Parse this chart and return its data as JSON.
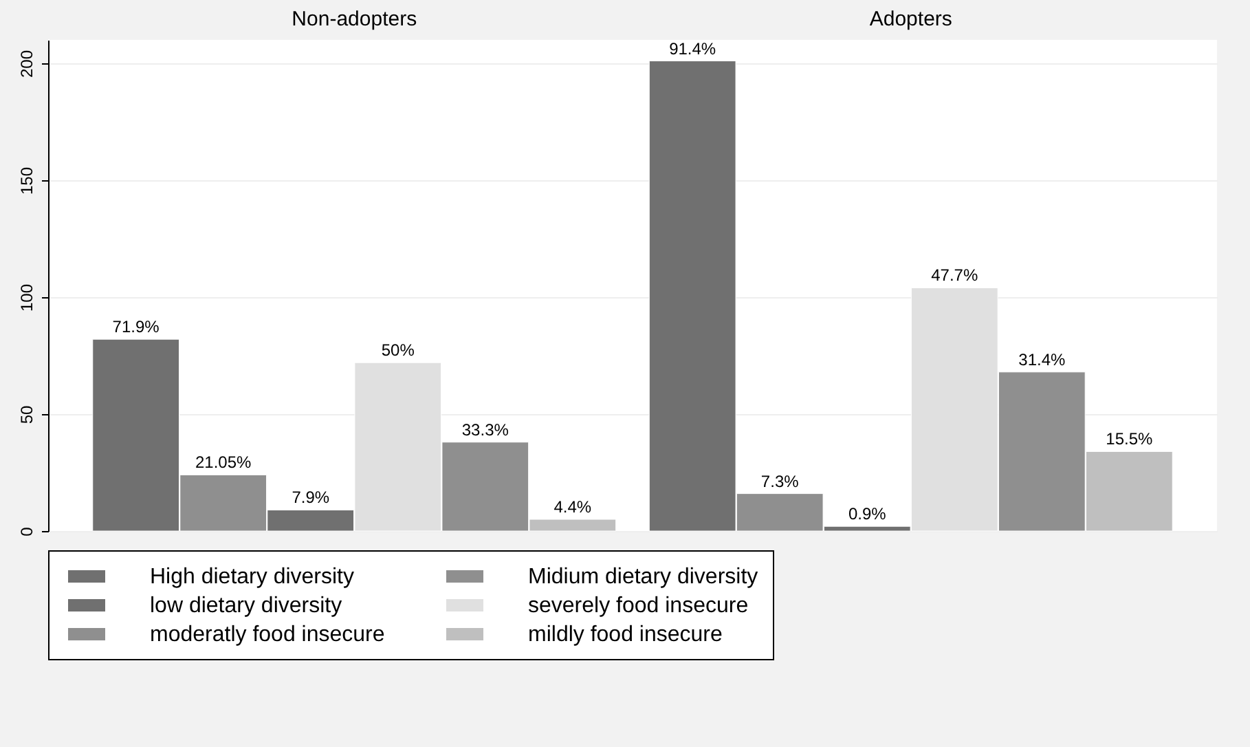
{
  "chart_data": {
    "type": "bar",
    "categories": [
      "Non-adopters",
      "Adopters"
    ],
    "ylim": [
      0,
      210
    ],
    "yticks": [
      0,
      50,
      100,
      150,
      200
    ],
    "grid": "y",
    "legend": "bottom",
    "series": [
      {
        "name": "High dietary diversity",
        "color": "#707070",
        "values": [
          82,
          201
        ]
      },
      {
        "name": "Midium dietary diversity",
        "color": "#8f8f8f",
        "values": [
          24,
          16
        ]
      },
      {
        "name": "low dietary diversity",
        "color": "#707070",
        "values": [
          9,
          2
        ]
      },
      {
        "name": "severely food insecure",
        "color": "#e0e0e0",
        "values": [
          72,
          104
        ]
      },
      {
        "name": "moderatly food insecure",
        "color": "#8f8f8f",
        "values": [
          38,
          68
        ]
      },
      {
        "name": "mildly food insecure",
        "color": "#bfbfbf",
        "values": [
          5,
          34
        ]
      }
    ],
    "annotations": [
      "71.9%",
      "21.05%",
      "7.9%",
      "50%",
      "33.3%",
      "4.4%",
      "91.4%",
      "7.3%",
      "0.9%",
      "47.7%",
      "31.4%",
      "15.5%"
    ]
  }
}
